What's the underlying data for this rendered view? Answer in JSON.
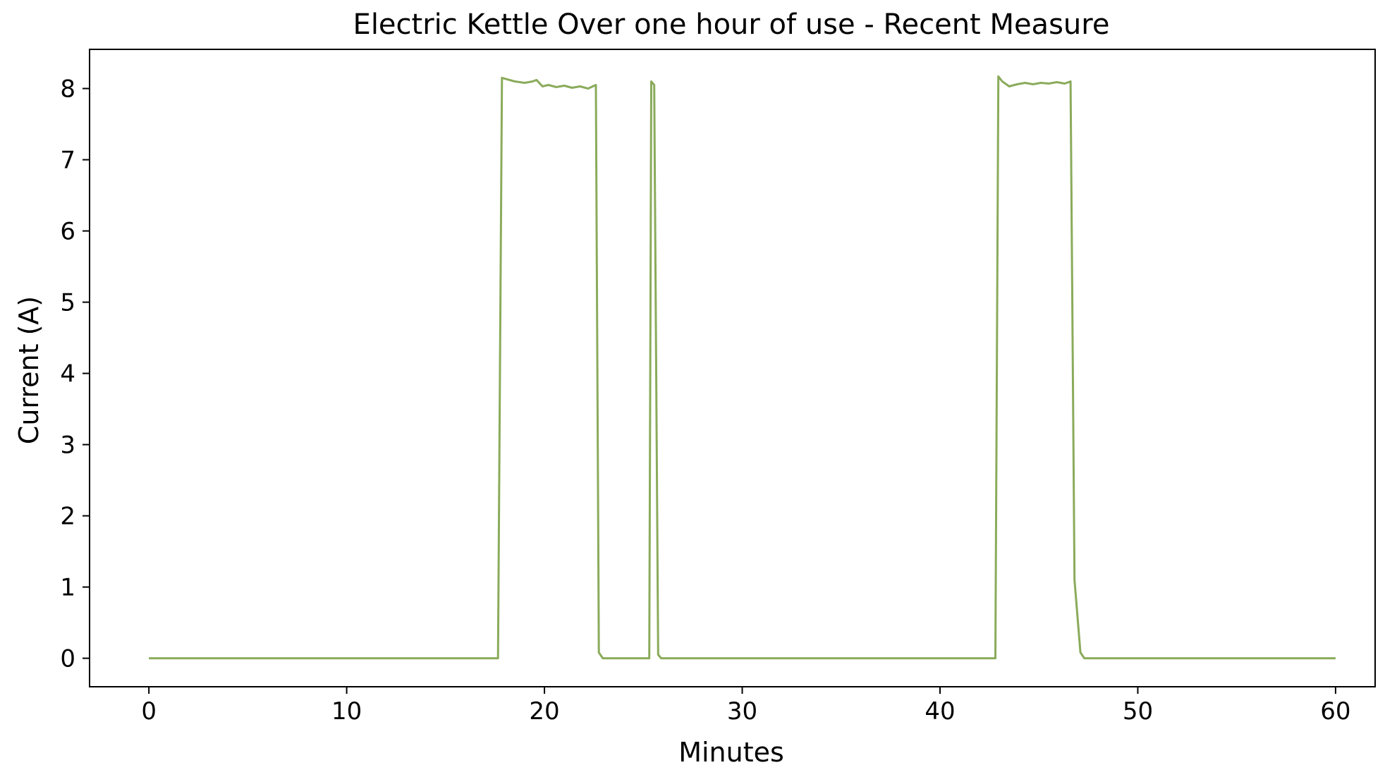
{
  "chart_data": {
    "type": "line",
    "title": "Electric Kettle Over one hour of use - Recent Measure",
    "xlabel": "Minutes",
    "ylabel": "Current (A)",
    "xlim": [
      -3,
      62
    ],
    "ylim": [
      -0.4,
      8.55
    ],
    "grid": false,
    "x_ticks": [
      0,
      10,
      20,
      30,
      40,
      50,
      60
    ],
    "x_tick_labels": [
      "0",
      "10",
      "20",
      "30",
      "40",
      "50",
      "60"
    ],
    "y_ticks": [
      0,
      1,
      2,
      3,
      4,
      5,
      6,
      7,
      8
    ],
    "y_tick_labels": [
      "0",
      "1",
      "2",
      "3",
      "4",
      "5",
      "6",
      "7",
      "8"
    ],
    "colors": {
      "line": "#8aab5b",
      "axes": "#000000",
      "background": "#ffffff"
    },
    "series": [
      {
        "x": [
          0,
          17.65,
          17.85,
          18.5,
          19.0,
          19.4,
          19.6,
          19.9,
          20.2,
          20.6,
          21.0,
          21.4,
          21.8,
          22.2,
          22.6,
          22.75,
          22.95,
          23.2,
          25.3,
          25.4,
          25.55,
          25.75,
          25.9,
          26.15,
          42.8,
          42.95,
          43.15,
          43.5,
          43.9,
          44.3,
          44.7,
          45.1,
          45.5,
          45.9,
          46.3,
          46.6,
          46.8,
          47.1,
          47.3,
          47.55,
          60
        ],
        "y": [
          0.0,
          0.0,
          8.15,
          8.1,
          8.08,
          8.1,
          8.12,
          8.03,
          8.05,
          8.02,
          8.04,
          8.01,
          8.03,
          8.0,
          8.05,
          0.08,
          0.0,
          0.0,
          0.0,
          8.1,
          8.05,
          0.05,
          0.0,
          0.0,
          0.0,
          8.17,
          8.1,
          8.03,
          8.06,
          8.08,
          8.06,
          8.08,
          8.07,
          8.09,
          8.07,
          8.1,
          1.1,
          0.08,
          0.0,
          0.0,
          0.0
        ]
      }
    ]
  }
}
